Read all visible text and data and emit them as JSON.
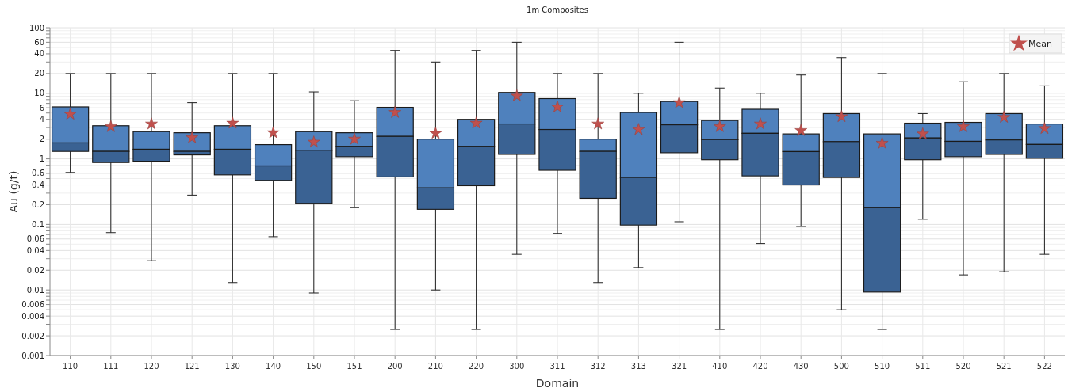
{
  "chart_data": {
    "type": "box",
    "title": "1m Composites",
    "xlabel": "Domain",
    "ylabel": "Au (g/t)",
    "categories": [
      "110",
      "111",
      "120",
      "121",
      "130",
      "140",
      "150",
      "151",
      "200",
      "210",
      "220",
      "300",
      "311",
      "312",
      "313",
      "321",
      "410",
      "420",
      "430",
      "500",
      "510",
      "511",
      "520",
      "521",
      "522"
    ],
    "log": true,
    "grid": true,
    "legend": "top right",
    "ylim": [
      0.001,
      100
    ],
    "yticks": [
      0.001,
      0.002,
      {
        "value": 0.003,
        "label": null
      },
      0.004,
      {
        "value": 0.005,
        "label": null
      },
      0.006,
      {
        "value": 0.007,
        "label": null
      },
      {
        "value": 0.008,
        "label": null
      },
      {
        "value": 0.009,
        "label": null
      },
      0.01,
      0.02,
      {
        "value": 0.03,
        "label": null
      },
      0.04,
      {
        "value": 0.05,
        "label": null
      },
      0.06,
      {
        "value": 0.07,
        "label": null
      },
      {
        "value": 0.08,
        "label": null
      },
      {
        "value": 0.09,
        "label": null
      },
      0.1,
      0.2,
      {
        "value": 0.3,
        "label": null
      },
      0.4,
      {
        "value": 0.5,
        "label": null
      },
      0.6,
      {
        "value": 0.7,
        "label": null
      },
      {
        "value": 0.8,
        "label": null
      },
      {
        "value": 0.9,
        "label": null
      },
      1,
      2,
      {
        "value": 3,
        "label": null
      },
      4,
      {
        "value": 5,
        "label": null
      },
      6,
      {
        "value": 7,
        "label": null
      },
      {
        "value": 8,
        "label": null
      },
      {
        "value": 9,
        "label": null
      },
      10,
      20,
      {
        "value": 30,
        "label": null
      },
      40,
      {
        "value": 50,
        "label": null
      },
      60,
      {
        "value": 70,
        "label": null
      },
      {
        "value": 80,
        "label": null
      },
      {
        "value": 90,
        "label": null
      },
      100
    ],
    "series": [
      {
        "type": "box",
        "color": "#4f81bd",
        "boxes": [
          {
            "low": 0.62,
            "q1": 1.3,
            "median": 1.75,
            "q3": 6.2,
            "high": 20
          },
          {
            "low": 0.075,
            "q1": 0.88,
            "median": 1.3,
            "q3": 3.2,
            "high": 20
          },
          {
            "low": 0.028,
            "q1": 0.92,
            "median": 1.4,
            "q3": 2.6,
            "high": 20
          },
          {
            "low": 0.28,
            "q1": 1.15,
            "median": 1.3,
            "q3": 2.5,
            "high": 7.2
          },
          {
            "low": 0.013,
            "q1": 0.57,
            "median": 1.4,
            "q3": 3.2,
            "high": 20
          },
          {
            "low": 0.065,
            "q1": 0.47,
            "median": 0.78,
            "q3": 1.65,
            "high": 20
          },
          {
            "low": 0.009,
            "q1": 0.21,
            "median": 1.35,
            "q3": 2.6,
            "high": 10.5
          },
          {
            "low": 0.18,
            "q1": 1.08,
            "median": 1.55,
            "q3": 2.5,
            "high": 7.7
          },
          {
            "low": 0.0025,
            "q1": 0.53,
            "median": 2.2,
            "q3": 6.1,
            "high": 45
          },
          {
            "low": 0.01,
            "q1": 0.17,
            "median": 0.36,
            "q3": 2.0,
            "high": 30
          },
          {
            "low": 0.0025,
            "q1": 0.39,
            "median": 1.55,
            "q3": 4.0,
            "high": 45
          },
          {
            "low": 0.035,
            "q1": 1.17,
            "median": 3.4,
            "q3": 10.3,
            "high": 60
          },
          {
            "low": 0.073,
            "q1": 0.67,
            "median": 2.8,
            "q3": 8.3,
            "high": 20
          },
          {
            "low": 0.013,
            "q1": 0.25,
            "median": 1.3,
            "q3": 2.0,
            "high": 20
          },
          {
            "low": 0.022,
            "q1": 0.098,
            "median": 0.52,
            "q3": 5.1,
            "high": 10
          },
          {
            "low": 0.11,
            "q1": 1.24,
            "median": 3.3,
            "q3": 7.5,
            "high": 60
          },
          {
            "low": 0.0025,
            "q1": 0.97,
            "median": 1.97,
            "q3": 3.85,
            "high": 12
          },
          {
            "low": 0.051,
            "q1": 0.55,
            "median": 2.45,
            "q3": 5.7,
            "high": 10
          },
          {
            "low": 0.093,
            "q1": 0.4,
            "median": 1.29,
            "q3": 2.4,
            "high": 19
          },
          {
            "low": 0.005,
            "q1": 0.52,
            "median": 1.83,
            "q3": 4.9,
            "high": 35
          },
          {
            "low": 0.0025,
            "q1": 0.0093,
            "median": 0.18,
            "q3": 2.4,
            "high": 20
          },
          {
            "low": 0.12,
            "q1": 0.97,
            "median": 2.08,
            "q3": 3.5,
            "high": 4.9
          },
          {
            "low": 0.017,
            "q1": 1.08,
            "median": 1.85,
            "q3": 3.6,
            "high": 15
          },
          {
            "low": 0.019,
            "q1": 1.17,
            "median": 1.94,
            "q3": 4.9,
            "high": 20
          },
          {
            "low": 0.035,
            "q1": 1.02,
            "median": 1.66,
            "q3": 3.4,
            "high": 13
          }
        ]
      },
      {
        "type": "scatter",
        "name": "Mean",
        "color": "#c0504d",
        "marker": "star",
        "x": [
          "110",
          "111",
          "120",
          "121",
          "130",
          "140",
          "150",
          "151",
          "200",
          "210",
          "220",
          "300",
          "311",
          "312",
          "313",
          "321",
          "410",
          "420",
          "430",
          "500",
          "510",
          "511",
          "520",
          "521",
          "522"
        ],
        "values": [
          4.8,
          3.1,
          3.4,
          2.1,
          3.5,
          2.5,
          1.8,
          2.0,
          5.1,
          2.45,
          3.5,
          9.1,
          6.2,
          3.4,
          2.8,
          7.2,
          3.1,
          3.4,
          2.7,
          4.4,
          1.73,
          2.4,
          3.1,
          4.3,
          2.9
        ]
      }
    ]
  }
}
